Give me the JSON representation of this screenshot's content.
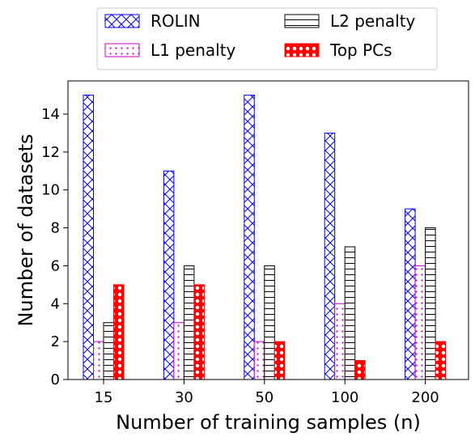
{
  "chart_data": {
    "type": "bar",
    "categories": [
      "15",
      "30",
      "50",
      "100",
      "200"
    ],
    "series": [
      {
        "name": "ROLIN",
        "values": [
          15,
          11,
          15,
          13,
          9
        ],
        "edge_color": "#0000ff",
        "hatch": "crosshatch"
      },
      {
        "name": "L1 penalty",
        "values": [
          2,
          3,
          2,
          4,
          6
        ],
        "edge_color": "#cc00cc",
        "hatch": "dots"
      },
      {
        "name": "L2 penalty",
        "values": [
          3,
          6,
          6,
          7,
          8
        ],
        "edge_color": "#000000",
        "hatch": "horizontal"
      },
      {
        "name": "Top PCs",
        "values": [
          5,
          5,
          2,
          1,
          2
        ],
        "edge_color": "#ff0000",
        "hatch": "circles"
      }
    ],
    "xlabel": "Number of training samples (n)",
    "ylabel": "Number of datasets",
    "ylim": [
      0,
      15.75
    ],
    "yticks": [
      0,
      2,
      4,
      6,
      8,
      10,
      12,
      14
    ],
    "grid": false,
    "legend_position": "top-center, outside plot, 2 columns"
  }
}
